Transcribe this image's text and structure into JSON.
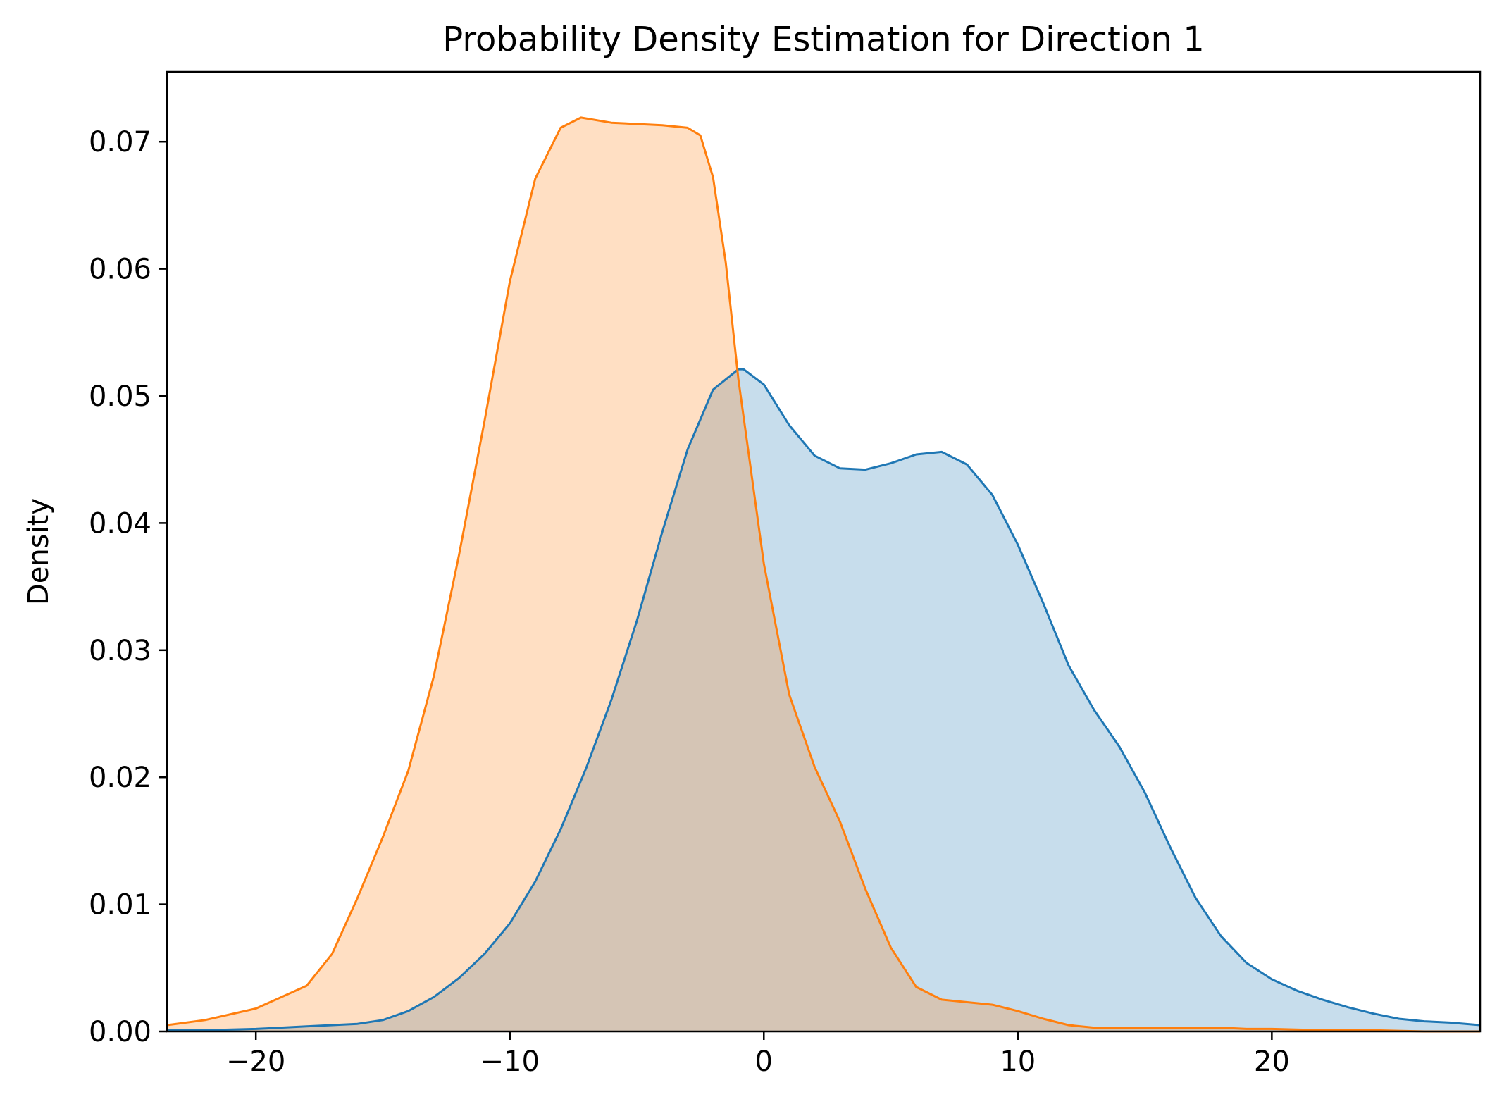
{
  "chart_data": {
    "type": "area",
    "title": "Probability Density Estimation for Direction 1",
    "xlabel": "",
    "ylabel": "Density",
    "xlim": [
      -23.5,
      28.2
    ],
    "ylim": [
      0,
      0.0755
    ],
    "x_ticks": [
      -20,
      -10,
      0,
      10,
      20
    ],
    "x_tick_labels": [
      "−20",
      "−10",
      "0",
      "10",
      "20"
    ],
    "y_ticks": [
      0.0,
      0.01,
      0.02,
      0.03,
      0.04,
      0.05,
      0.06,
      0.07
    ],
    "y_tick_labels": [
      "0.00",
      "0.01",
      "0.02",
      "0.03",
      "0.04",
      "0.05",
      "0.06",
      "0.07"
    ],
    "grid": false,
    "legend": "none",
    "series": [
      {
        "color": "#1f77b4",
        "fill_opacity": 0.25,
        "x": [
          -23.5,
          -22,
          -20,
          -18,
          -16,
          -15,
          -14,
          -13,
          -12,
          -11,
          -10,
          -9,
          -8,
          -7,
          -6,
          -5,
          -4,
          -3,
          -2,
          -1,
          -0.8,
          0,
          1,
          2,
          3,
          4,
          5,
          6,
          7,
          8,
          9,
          10,
          11,
          12,
          13,
          14,
          15,
          16,
          17,
          18,
          19,
          20,
          21,
          22,
          23,
          24,
          25,
          26,
          27,
          28.2
        ],
        "y": [
          0.0001,
          0.0001,
          0.0002,
          0.0004,
          0.0006,
          0.0009,
          0.0016,
          0.0027,
          0.0042,
          0.0061,
          0.0085,
          0.0118,
          0.0159,
          0.0207,
          0.0261,
          0.0323,
          0.0393,
          0.0458,
          0.0505,
          0.0521,
          0.0521,
          0.0509,
          0.0477,
          0.0453,
          0.0443,
          0.0442,
          0.0447,
          0.0454,
          0.0456,
          0.0446,
          0.0422,
          0.0383,
          0.0337,
          0.0288,
          0.0253,
          0.0224,
          0.0188,
          0.0145,
          0.0105,
          0.0075,
          0.0054,
          0.0041,
          0.0032,
          0.0025,
          0.0019,
          0.0014,
          0.001,
          0.0008,
          0.0007,
          0.0005
        ]
      },
      {
        "color": "#ff7f0e",
        "fill_opacity": 0.25,
        "x": [
          -23.5,
          -22,
          -20,
          -18,
          -17,
          -16,
          -15,
          -14,
          -13,
          -12,
          -11,
          -10,
          -9,
          -8,
          -7.2,
          -6,
          -5,
          -4,
          -3,
          -2.5,
          -2,
          -1.5,
          -1,
          0,
          1,
          2,
          3,
          4,
          5,
          6,
          7,
          8,
          9,
          10,
          11,
          12,
          13,
          14,
          15,
          16,
          17,
          18,
          19,
          20,
          22,
          24,
          26,
          28.2
        ],
        "y": [
          0.0005,
          0.0009,
          0.0018,
          0.0036,
          0.0061,
          0.0105,
          0.0153,
          0.0205,
          0.0279,
          0.0375,
          0.048,
          0.059,
          0.0671,
          0.0711,
          0.0719,
          0.0715,
          0.0714,
          0.0713,
          0.0711,
          0.0705,
          0.0672,
          0.0605,
          0.0513,
          0.0368,
          0.0265,
          0.0208,
          0.0165,
          0.0112,
          0.0066,
          0.0035,
          0.0025,
          0.0023,
          0.0021,
          0.0016,
          0.001,
          0.0005,
          0.0003,
          0.0003,
          0.0003,
          0.0003,
          0.0003,
          0.0003,
          0.0002,
          0.0002,
          0.0001,
          0.0001,
          0.0,
          0.0
        ]
      }
    ]
  }
}
